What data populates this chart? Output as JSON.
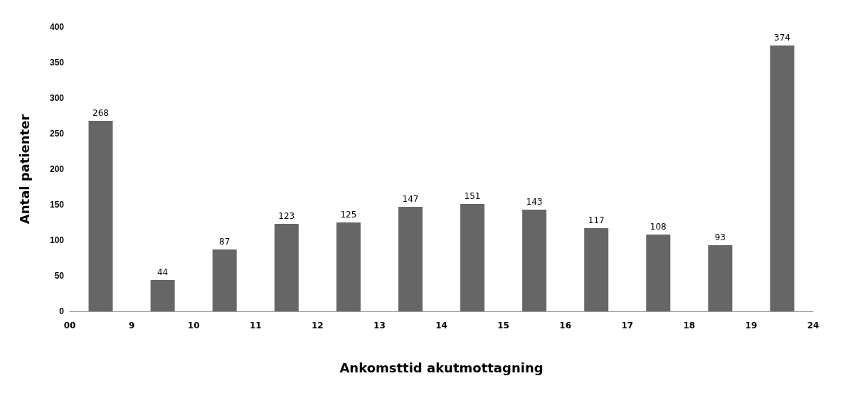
{
  "chart_data": {
    "type": "bar",
    "xlabel": "Ankomsttid akutmottagning",
    "ylabel": "Antal patienter",
    "categories": [
      null,
      null,
      null,
      null,
      null,
      null,
      null,
      null,
      null,
      null,
      null,
      null
    ],
    "values": [
      268,
      44,
      87,
      123,
      125,
      147,
      151,
      143,
      117,
      108,
      93,
      374
    ],
    "color": "#666666",
    "annotations": [
      "00",
      "9",
      "10",
      "11",
      "12",
      "13",
      "14",
      "15",
      "16",
      "17",
      "18",
      "19",
      "24"
    ],
    "ylim": [
      0,
      400
    ],
    "yticks": [
      0,
      50,
      100,
      150,
      200,
      250,
      300,
      350,
      400
    ],
    "data_labels": true,
    "grid": false
  }
}
